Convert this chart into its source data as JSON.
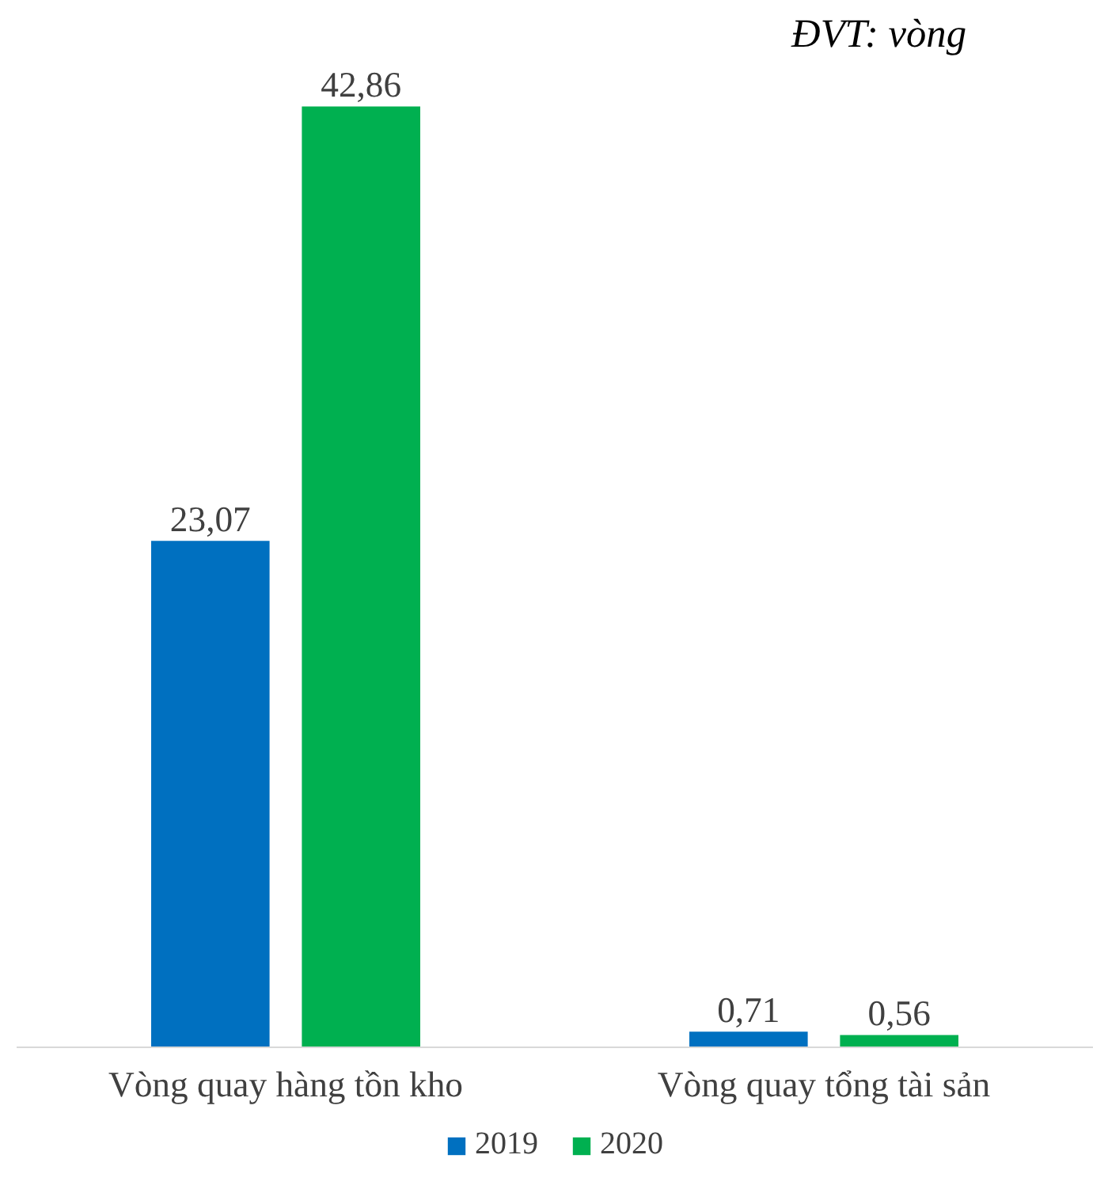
{
  "chart_data": {
    "type": "bar",
    "categories": [
      "Vòng quay hàng tồn kho",
      "Vòng quay tổng tài sản"
    ],
    "series": [
      {
        "name": "2019",
        "color": "#0070c0",
        "values": [
          23.07,
          0.71
        ],
        "value_labels": [
          "23,07",
          "0,71"
        ]
      },
      {
        "name": "2020",
        "color": "#00b050",
        "values": [
          42.86,
          0.56
        ],
        "value_labels": [
          "42,86",
          "0,56"
        ]
      }
    ],
    "annotations": [
      "ĐVT: vòng"
    ],
    "legend": "bottom",
    "grid": false
  }
}
